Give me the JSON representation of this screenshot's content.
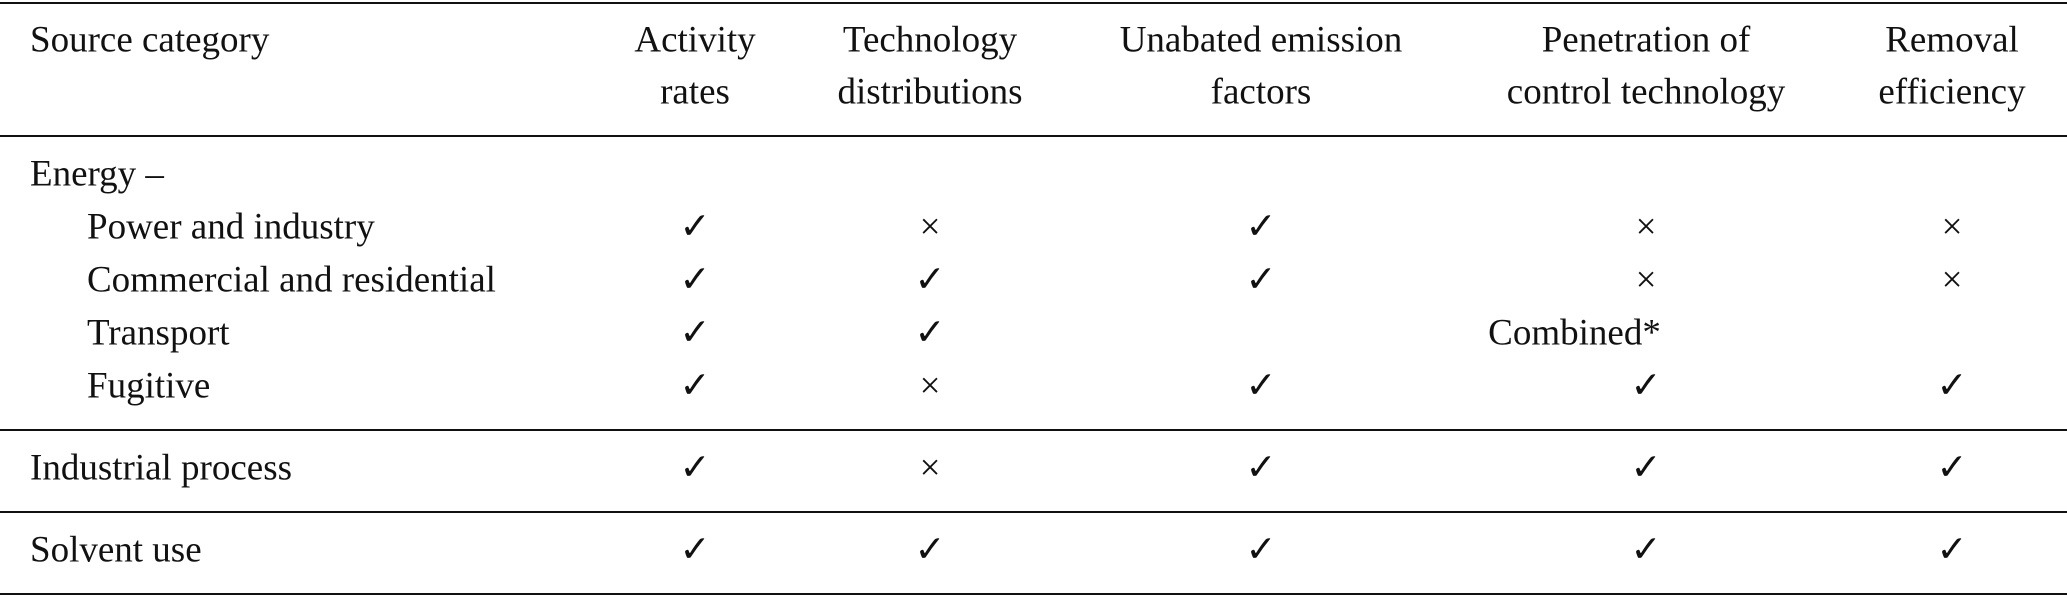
{
  "table": {
    "header": [
      [
        "Source category"
      ],
      [
        "Activity",
        "rates"
      ],
      [
        "Technology",
        "distributions"
      ],
      [
        "Unabated emission",
        "factors"
      ],
      [
        "Penetration of",
        "control technology"
      ],
      [
        "Removal",
        "efficiency"
      ]
    ],
    "groups": [
      {
        "label": "Energy –",
        "rows": [
          [
            "Power and industry",
            "✓",
            "×",
            "✓",
            "×",
            "×"
          ],
          [
            "Commercial and residential",
            "✓",
            "✓",
            "✓",
            "×",
            "×"
          ],
          [
            "Transport",
            "✓",
            "✓",
            "Combined*"
          ],
          [
            "Fugitive",
            "✓",
            "×",
            "✓",
            "✓",
            "✓"
          ]
        ]
      },
      {
        "rows": [
          [
            "Industrial process",
            "✓",
            "×",
            "✓",
            "✓",
            "✓"
          ]
        ]
      },
      {
        "rows": [
          [
            "Solvent use",
            "✓",
            "✓",
            "✓",
            "✓",
            "✓"
          ]
        ]
      }
    ]
  }
}
